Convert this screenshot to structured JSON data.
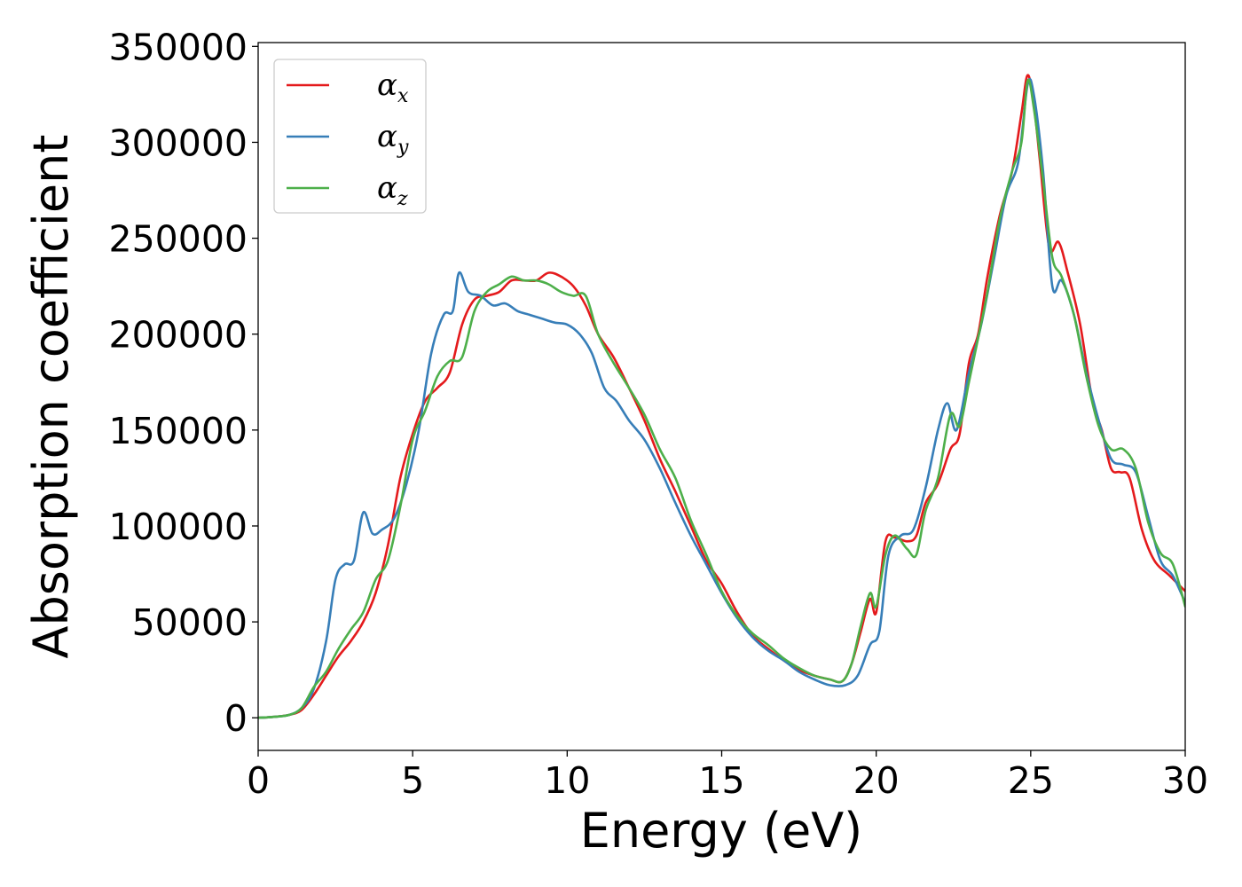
{
  "chart_data": {
    "type": "line",
    "xlabel": "Energy (eV)",
    "ylabel": "Absorption coefficient",
    "xlim": [
      0,
      30
    ],
    "ylim": [
      -17000,
      352000
    ],
    "xticks": [
      0,
      5,
      10,
      15,
      20,
      25,
      30
    ],
    "yticks": [
      0,
      50000,
      100000,
      150000,
      200000,
      250000,
      300000,
      350000
    ],
    "grid": false,
    "legend_position": "top-left",
    "series": [
      {
        "name": "α_x",
        "symbol": "α",
        "subscript": "x",
        "color": "#e41a1c",
        "points": [
          [
            0,
            0
          ],
          [
            0.5,
            500
          ],
          [
            1.0,
            1500
          ],
          [
            1.4,
            4000
          ],
          [
            1.8,
            12000
          ],
          [
            2.2,
            22000
          ],
          [
            2.6,
            32000
          ],
          [
            3.0,
            40000
          ],
          [
            3.4,
            50000
          ],
          [
            3.8,
            65000
          ],
          [
            4.2,
            90000
          ],
          [
            4.6,
            125000
          ],
          [
            5.0,
            148000
          ],
          [
            5.4,
            165000
          ],
          [
            5.8,
            172000
          ],
          [
            6.2,
            180000
          ],
          [
            6.6,
            205000
          ],
          [
            7.0,
            218000
          ],
          [
            7.4,
            220000
          ],
          [
            7.8,
            222000
          ],
          [
            8.2,
            228000
          ],
          [
            8.6,
            228000
          ],
          [
            9.0,
            228000
          ],
          [
            9.4,
            232000
          ],
          [
            9.8,
            230000
          ],
          [
            10.2,
            225000
          ],
          [
            10.6,
            215000
          ],
          [
            11.0,
            200000
          ],
          [
            11.5,
            188000
          ],
          [
            12.0,
            172000
          ],
          [
            12.5,
            155000
          ],
          [
            13.0,
            135000
          ],
          [
            13.5,
            118000
          ],
          [
            14.0,
            100000
          ],
          [
            14.5,
            82000
          ],
          [
            15.0,
            70000
          ],
          [
            15.5,
            55000
          ],
          [
            16.0,
            43000
          ],
          [
            16.5,
            36000
          ],
          [
            17.0,
            30000
          ],
          [
            17.5,
            25000
          ],
          [
            18.0,
            22000
          ],
          [
            18.5,
            20000
          ],
          [
            18.9,
            19000
          ],
          [
            19.2,
            28000
          ],
          [
            19.5,
            45000
          ],
          [
            19.8,
            62000
          ],
          [
            20.0,
            55000
          ],
          [
            20.3,
            92000
          ],
          [
            20.6,
            94000
          ],
          [
            21.0,
            92000
          ],
          [
            21.3,
            95000
          ],
          [
            21.6,
            112000
          ],
          [
            22.0,
            122000
          ],
          [
            22.4,
            140000
          ],
          [
            22.7,
            148000
          ],
          [
            23.0,
            185000
          ],
          [
            23.3,
            200000
          ],
          [
            23.6,
            230000
          ],
          [
            24.0,
            262000
          ],
          [
            24.4,
            285000
          ],
          [
            24.7,
            315000
          ],
          [
            24.9,
            335000
          ],
          [
            25.1,
            320000
          ],
          [
            25.3,
            290000
          ],
          [
            25.6,
            245000
          ],
          [
            25.9,
            248000
          ],
          [
            26.2,
            232000
          ],
          [
            26.6,
            205000
          ],
          [
            27.0,
            165000
          ],
          [
            27.3,
            150000
          ],
          [
            27.6,
            130000
          ],
          [
            27.9,
            128000
          ],
          [
            28.2,
            125000
          ],
          [
            28.6,
            98000
          ],
          [
            29.0,
            82000
          ],
          [
            29.5,
            74000
          ],
          [
            30.0,
            66000
          ]
        ]
      },
      {
        "name": "α_y",
        "symbol": "α",
        "subscript": "y",
        "color": "#377eb8",
        "points": [
          [
            0,
            0
          ],
          [
            0.5,
            500
          ],
          [
            1.0,
            1500
          ],
          [
            1.4,
            5000
          ],
          [
            1.8,
            15000
          ],
          [
            2.2,
            40000
          ],
          [
            2.5,
            72000
          ],
          [
            2.8,
            80000
          ],
          [
            3.1,
            82000
          ],
          [
            3.4,
            107000
          ],
          [
            3.7,
            96000
          ],
          [
            4.0,
            98000
          ],
          [
            4.4,
            104000
          ],
          [
            4.8,
            122000
          ],
          [
            5.2,
            150000
          ],
          [
            5.6,
            190000
          ],
          [
            6.0,
            210000
          ],
          [
            6.3,
            212000
          ],
          [
            6.5,
            232000
          ],
          [
            6.8,
            222000
          ],
          [
            7.2,
            220000
          ],
          [
            7.6,
            215000
          ],
          [
            8.0,
            216000
          ],
          [
            8.4,
            212000
          ],
          [
            8.8,
            210000
          ],
          [
            9.2,
            208000
          ],
          [
            9.6,
            206000
          ],
          [
            10.0,
            205000
          ],
          [
            10.4,
            200000
          ],
          [
            10.8,
            190000
          ],
          [
            11.2,
            172000
          ],
          [
            11.6,
            165000
          ],
          [
            12.0,
            155000
          ],
          [
            12.5,
            145000
          ],
          [
            13.0,
            130000
          ],
          [
            13.5,
            112000
          ],
          [
            14.0,
            95000
          ],
          [
            14.5,
            80000
          ],
          [
            15.0,
            65000
          ],
          [
            15.5,
            52000
          ],
          [
            16.0,
            42000
          ],
          [
            16.5,
            35000
          ],
          [
            17.0,
            30000
          ],
          [
            17.5,
            24000
          ],
          [
            18.0,
            20000
          ],
          [
            18.5,
            17000
          ],
          [
            19.0,
            17000
          ],
          [
            19.4,
            22000
          ],
          [
            19.8,
            38000
          ],
          [
            20.1,
            45000
          ],
          [
            20.4,
            85000
          ],
          [
            20.8,
            95000
          ],
          [
            21.2,
            98000
          ],
          [
            21.6,
            120000
          ],
          [
            22.0,
            150000
          ],
          [
            22.3,
            164000
          ],
          [
            22.6,
            150000
          ],
          [
            23.0,
            180000
          ],
          [
            23.4,
            205000
          ],
          [
            23.8,
            238000
          ],
          [
            24.2,
            272000
          ],
          [
            24.6,
            290000
          ],
          [
            24.9,
            330000
          ],
          [
            25.1,
            325000
          ],
          [
            25.4,
            285000
          ],
          [
            25.7,
            225000
          ],
          [
            26.0,
            228000
          ],
          [
            26.4,
            210000
          ],
          [
            26.8,
            180000
          ],
          [
            27.2,
            155000
          ],
          [
            27.6,
            135000
          ],
          [
            28.0,
            132000
          ],
          [
            28.4,
            128000
          ],
          [
            28.8,
            105000
          ],
          [
            29.2,
            82000
          ],
          [
            29.6,
            74000
          ],
          [
            30.0,
            60000
          ]
        ]
      },
      {
        "name": "α_z",
        "symbol": "α",
        "subscript": "z",
        "color": "#4daf4a",
        "points": [
          [
            0,
            0
          ],
          [
            0.5,
            500
          ],
          [
            1.0,
            1500
          ],
          [
            1.4,
            5000
          ],
          [
            1.8,
            16000
          ],
          [
            2.2,
            24000
          ],
          [
            2.6,
            36000
          ],
          [
            3.0,
            46000
          ],
          [
            3.4,
            55000
          ],
          [
            3.8,
            72000
          ],
          [
            4.2,
            82000
          ],
          [
            4.6,
            110000
          ],
          [
            5.0,
            145000
          ],
          [
            5.4,
            160000
          ],
          [
            5.8,
            178000
          ],
          [
            6.2,
            186000
          ],
          [
            6.6,
            188000
          ],
          [
            7.0,
            212000
          ],
          [
            7.4,
            222000
          ],
          [
            7.8,
            226000
          ],
          [
            8.2,
            230000
          ],
          [
            8.6,
            228000
          ],
          [
            9.0,
            228000
          ],
          [
            9.4,
            226000
          ],
          [
            9.8,
            222000
          ],
          [
            10.2,
            220000
          ],
          [
            10.6,
            220000
          ],
          [
            11.0,
            200000
          ],
          [
            11.5,
            185000
          ],
          [
            12.0,
            172000
          ],
          [
            12.5,
            158000
          ],
          [
            13.0,
            140000
          ],
          [
            13.5,
            125000
          ],
          [
            14.0,
            103000
          ],
          [
            14.5,
            85000
          ],
          [
            15.0,
            66000
          ],
          [
            15.5,
            53000
          ],
          [
            16.0,
            44000
          ],
          [
            16.5,
            38000
          ],
          [
            17.0,
            31000
          ],
          [
            17.5,
            26000
          ],
          [
            18.0,
            22000
          ],
          [
            18.5,
            20000
          ],
          [
            18.9,
            19000
          ],
          [
            19.2,
            28000
          ],
          [
            19.5,
            48000
          ],
          [
            19.8,
            65000
          ],
          [
            20.0,
            58000
          ],
          [
            20.3,
            85000
          ],
          [
            20.6,
            95000
          ],
          [
            21.0,
            88000
          ],
          [
            21.3,
            85000
          ],
          [
            21.6,
            108000
          ],
          [
            22.0,
            125000
          ],
          [
            22.4,
            158000
          ],
          [
            22.7,
            152000
          ],
          [
            23.0,
            175000
          ],
          [
            23.3,
            198000
          ],
          [
            23.6,
            222000
          ],
          [
            24.0,
            260000
          ],
          [
            24.4,
            285000
          ],
          [
            24.7,
            300000
          ],
          [
            24.9,
            332000
          ],
          [
            25.1,
            318000
          ],
          [
            25.4,
            280000
          ],
          [
            25.7,
            240000
          ],
          [
            26.0,
            230000
          ],
          [
            26.4,
            210000
          ],
          [
            26.8,
            178000
          ],
          [
            27.2,
            152000
          ],
          [
            27.6,
            140000
          ],
          [
            28.0,
            140000
          ],
          [
            28.4,
            130000
          ],
          [
            28.8,
            102000
          ],
          [
            29.2,
            86000
          ],
          [
            29.6,
            80000
          ],
          [
            30.0,
            58000
          ]
        ]
      }
    ]
  }
}
